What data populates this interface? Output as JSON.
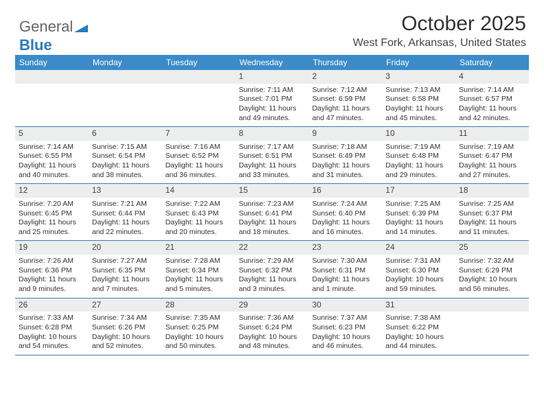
{
  "logo": {
    "part1": "General",
    "part2": "Blue"
  },
  "title": "October 2025",
  "location": "West Fork, Arkansas, United States",
  "colors": {
    "header_bg": "#3b8bc9",
    "header_fg": "#ffffff",
    "daynum_bg": "#eceded",
    "week_border": "#3b7fb5",
    "text": "#333333"
  },
  "day_headers": [
    "Sunday",
    "Monday",
    "Tuesday",
    "Wednesday",
    "Thursday",
    "Friday",
    "Saturday"
  ],
  "weeks": [
    [
      {
        "n": "",
        "empty": true
      },
      {
        "n": "",
        "empty": true
      },
      {
        "n": "",
        "empty": true
      },
      {
        "n": "1",
        "sr": "7:11 AM",
        "ss": "7:01 PM",
        "dl": "11 hours and 49 minutes."
      },
      {
        "n": "2",
        "sr": "7:12 AM",
        "ss": "6:59 PM",
        "dl": "11 hours and 47 minutes."
      },
      {
        "n": "3",
        "sr": "7:13 AM",
        "ss": "6:58 PM",
        "dl": "11 hours and 45 minutes."
      },
      {
        "n": "4",
        "sr": "7:14 AM",
        "ss": "6:57 PM",
        "dl": "11 hours and 42 minutes."
      }
    ],
    [
      {
        "n": "5",
        "sr": "7:14 AM",
        "ss": "6:55 PM",
        "dl": "11 hours and 40 minutes."
      },
      {
        "n": "6",
        "sr": "7:15 AM",
        "ss": "6:54 PM",
        "dl": "11 hours and 38 minutes."
      },
      {
        "n": "7",
        "sr": "7:16 AM",
        "ss": "6:52 PM",
        "dl": "11 hours and 36 minutes."
      },
      {
        "n": "8",
        "sr": "7:17 AM",
        "ss": "6:51 PM",
        "dl": "11 hours and 33 minutes."
      },
      {
        "n": "9",
        "sr": "7:18 AM",
        "ss": "6:49 PM",
        "dl": "11 hours and 31 minutes."
      },
      {
        "n": "10",
        "sr": "7:19 AM",
        "ss": "6:48 PM",
        "dl": "11 hours and 29 minutes."
      },
      {
        "n": "11",
        "sr": "7:19 AM",
        "ss": "6:47 PM",
        "dl": "11 hours and 27 minutes."
      }
    ],
    [
      {
        "n": "12",
        "sr": "7:20 AM",
        "ss": "6:45 PM",
        "dl": "11 hours and 25 minutes."
      },
      {
        "n": "13",
        "sr": "7:21 AM",
        "ss": "6:44 PM",
        "dl": "11 hours and 22 minutes."
      },
      {
        "n": "14",
        "sr": "7:22 AM",
        "ss": "6:43 PM",
        "dl": "11 hours and 20 minutes."
      },
      {
        "n": "15",
        "sr": "7:23 AM",
        "ss": "6:41 PM",
        "dl": "11 hours and 18 minutes."
      },
      {
        "n": "16",
        "sr": "7:24 AM",
        "ss": "6:40 PM",
        "dl": "11 hours and 16 minutes."
      },
      {
        "n": "17",
        "sr": "7:25 AM",
        "ss": "6:39 PM",
        "dl": "11 hours and 14 minutes."
      },
      {
        "n": "18",
        "sr": "7:25 AM",
        "ss": "6:37 PM",
        "dl": "11 hours and 11 minutes."
      }
    ],
    [
      {
        "n": "19",
        "sr": "7:26 AM",
        "ss": "6:36 PM",
        "dl": "11 hours and 9 minutes."
      },
      {
        "n": "20",
        "sr": "7:27 AM",
        "ss": "6:35 PM",
        "dl": "11 hours and 7 minutes."
      },
      {
        "n": "21",
        "sr": "7:28 AM",
        "ss": "6:34 PM",
        "dl": "11 hours and 5 minutes."
      },
      {
        "n": "22",
        "sr": "7:29 AM",
        "ss": "6:32 PM",
        "dl": "11 hours and 3 minutes."
      },
      {
        "n": "23",
        "sr": "7:30 AM",
        "ss": "6:31 PM",
        "dl": "11 hours and 1 minute."
      },
      {
        "n": "24",
        "sr": "7:31 AM",
        "ss": "6:30 PM",
        "dl": "10 hours and 59 minutes."
      },
      {
        "n": "25",
        "sr": "7:32 AM",
        "ss": "6:29 PM",
        "dl": "10 hours and 56 minutes."
      }
    ],
    [
      {
        "n": "26",
        "sr": "7:33 AM",
        "ss": "6:28 PM",
        "dl": "10 hours and 54 minutes."
      },
      {
        "n": "27",
        "sr": "7:34 AM",
        "ss": "6:26 PM",
        "dl": "10 hours and 52 minutes."
      },
      {
        "n": "28",
        "sr": "7:35 AM",
        "ss": "6:25 PM",
        "dl": "10 hours and 50 minutes."
      },
      {
        "n": "29",
        "sr": "7:36 AM",
        "ss": "6:24 PM",
        "dl": "10 hours and 48 minutes."
      },
      {
        "n": "30",
        "sr": "7:37 AM",
        "ss": "6:23 PM",
        "dl": "10 hours and 46 minutes."
      },
      {
        "n": "31",
        "sr": "7:38 AM",
        "ss": "6:22 PM",
        "dl": "10 hours and 44 minutes."
      },
      {
        "n": "",
        "empty": true
      }
    ]
  ],
  "labels": {
    "sunrise": "Sunrise:",
    "sunset": "Sunset:",
    "daylight": "Daylight:"
  }
}
